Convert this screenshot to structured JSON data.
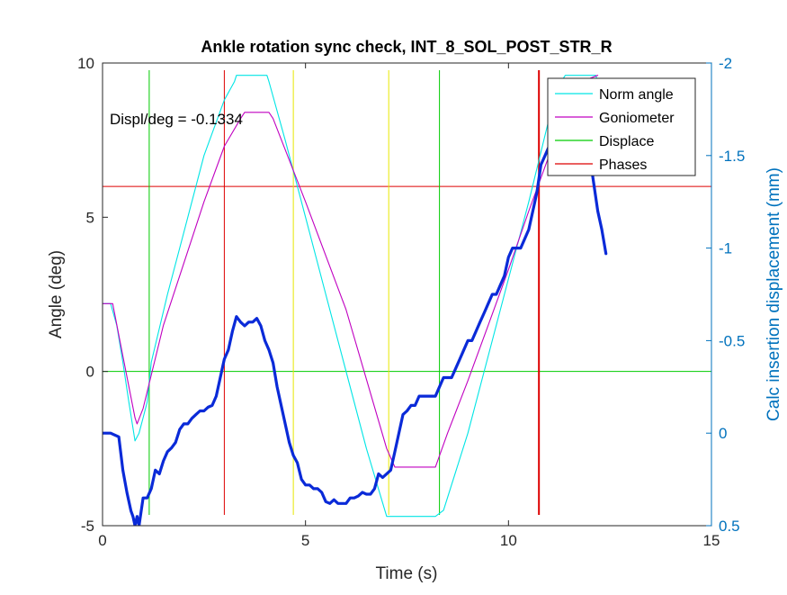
{
  "chart_data": {
    "type": "line",
    "title": "Ankle rotation sync check, INT_8_SOL_POST_STR_R",
    "xlabel": "Time (s)",
    "ylabel": "Angle (deg)",
    "y2label": "Calc insertion displacement (mm)",
    "xlim": [
      0,
      15
    ],
    "ylim": [
      -5,
      10
    ],
    "y2lim": [
      0.5,
      -2
    ],
    "y2_reversed": true,
    "xticks": [
      "0",
      "5",
      "10",
      "15"
    ],
    "xtick_values": [
      0,
      5,
      10,
      15
    ],
    "yticks": [
      "-5",
      "0",
      "5",
      "10"
    ],
    "ytick_values": [
      -5,
      0,
      5,
      10
    ],
    "y2ticks": [
      "0.5",
      "0",
      "-0.5",
      "-1",
      "-1.5",
      "-2"
    ],
    "y2tick_values": [
      0.5,
      0,
      -0.5,
      -1,
      -1.5,
      -2
    ],
    "annotation": "Displ/deg = -0.1334",
    "legend_position": "top-right",
    "legend": [
      {
        "label": "Norm angle",
        "color": "#00e5e5"
      },
      {
        "label": "Goniometer",
        "color": "#c000c0"
      },
      {
        "label": "Displace",
        "color": "#00cc00"
      },
      {
        "label": "Phases",
        "color": "#dd0000"
      }
    ],
    "series": [
      {
        "name": "Norm angle",
        "axis": "left",
        "color": "#00e5e5",
        "x": [
          0,
          0.2,
          0.35,
          0.5,
          0.65,
          0.8,
          0.9,
          1.0,
          1.1,
          1.2,
          1.6,
          2.0,
          2.5,
          3.0,
          3.25,
          3.3,
          4.05,
          4.1,
          4.5,
          5.0,
          5.5,
          6.0,
          6.5,
          7.0,
          7.2,
          8.2,
          8.4,
          9.0,
          9.5,
          10.0,
          10.5,
          11.0,
          11.35,
          11.4,
          12.15,
          12.2
        ],
        "y": [
          2.2,
          2.2,
          1.5,
          0.3,
          -1.0,
          -2.25,
          -2.0,
          -1.5,
          -1.0,
          0.3,
          2.5,
          4.5,
          7.0,
          8.8,
          9.4,
          9.6,
          9.6,
          9.4,
          7.5,
          5.0,
          2.5,
          0.0,
          -2.5,
          -4.7,
          -4.7,
          -4.7,
          -4.5,
          -2.0,
          0.5,
          3.0,
          5.5,
          8.2,
          9.5,
          9.6,
          9.6,
          9.4
        ]
      },
      {
        "name": "Goniometer",
        "axis": "left",
        "color": "#c000c0",
        "x": [
          0,
          0.25,
          0.5,
          0.8,
          0.85,
          1.0,
          1.5,
          2.0,
          2.5,
          3.0,
          3.4,
          3.5,
          4.1,
          4.2,
          5.0,
          6.0,
          7.0,
          7.2,
          8.2,
          8.5,
          9.0,
          9.5,
          10.0,
          10.5,
          11.0,
          11.5,
          12.0,
          12.2
        ],
        "y": [
          2.2,
          2.2,
          0.5,
          -1.5,
          -1.7,
          -1.2,
          1.5,
          3.5,
          5.5,
          7.3,
          8.2,
          8.4,
          8.4,
          8.2,
          5.5,
          2.0,
          -2.5,
          -3.1,
          -3.1,
          -2.0,
          -0.3,
          1.5,
          3.3,
          5.2,
          7.0,
          8.7,
          9.5,
          9.6
        ]
      },
      {
        "name": "Displace",
        "axis": "right",
        "color": "#0a2ad8",
        "x": [
          0,
          0.2,
          0.4,
          0.5,
          0.6,
          0.7,
          0.75,
          0.8,
          0.85,
          0.9,
          1.0,
          1.1,
          1.2,
          1.3,
          1.4,
          1.5,
          1.6,
          1.7,
          1.8,
          1.9,
          2.0,
          2.1,
          2.2,
          2.3,
          2.4,
          2.5,
          2.6,
          2.7,
          2.8,
          2.9,
          3.0,
          3.1,
          3.2,
          3.3,
          3.4,
          3.5,
          3.6,
          3.7,
          3.8,
          3.9,
          4.0,
          4.1,
          4.2,
          4.3,
          4.4,
          4.5,
          4.6,
          4.7,
          4.8,
          4.9,
          5.0,
          5.1,
          5.2,
          5.3,
          5.4,
          5.5,
          5.6,
          5.7,
          5.8,
          5.9,
          6.0,
          6.1,
          6.2,
          6.3,
          6.4,
          6.5,
          6.6,
          6.7,
          6.8,
          6.9,
          7.0,
          7.1,
          7.2,
          7.3,
          7.4,
          7.5,
          7.6,
          7.7,
          7.8,
          7.9,
          8.0,
          8.1,
          8.2,
          8.3,
          8.4,
          8.5,
          8.6,
          8.7,
          8.8,
          8.9,
          9.0,
          9.1,
          9.2,
          9.3,
          9.4,
          9.5,
          9.6,
          9.7,
          9.8,
          9.9,
          10.0,
          10.1,
          10.2,
          10.3,
          10.4,
          10.5,
          10.6,
          10.7,
          10.8,
          10.9,
          11.0,
          11.1,
          11.2,
          11.3,
          11.4,
          11.5,
          11.6,
          11.7,
          11.8,
          11.9,
          12.0,
          12.1,
          12.2,
          12.3,
          12.4
        ],
        "y": [
          0.0,
          0.0,
          0.02,
          0.2,
          0.32,
          0.42,
          0.45,
          0.5,
          0.45,
          0.5,
          0.35,
          0.35,
          0.3,
          0.2,
          0.22,
          0.15,
          0.1,
          0.08,
          0.05,
          -0.02,
          -0.05,
          -0.05,
          -0.08,
          -0.1,
          -0.12,
          -0.12,
          -0.14,
          -0.15,
          -0.2,
          -0.3,
          -0.4,
          -0.45,
          -0.55,
          -0.63,
          -0.6,
          -0.58,
          -0.6,
          -0.6,
          -0.62,
          -0.58,
          -0.5,
          -0.45,
          -0.38,
          -0.25,
          -0.15,
          -0.05,
          0.05,
          0.12,
          0.16,
          0.25,
          0.28,
          0.28,
          0.3,
          0.3,
          0.32,
          0.37,
          0.38,
          0.36,
          0.38,
          0.38,
          0.38,
          0.35,
          0.35,
          0.34,
          0.32,
          0.33,
          0.33,
          0.3,
          0.22,
          0.24,
          0.22,
          0.2,
          0.1,
          0.0,
          -0.1,
          -0.12,
          -0.15,
          -0.15,
          -0.2,
          -0.2,
          -0.2,
          -0.2,
          -0.2,
          -0.25,
          -0.3,
          -0.3,
          -0.3,
          -0.35,
          -0.4,
          -0.45,
          -0.5,
          -0.5,
          -0.55,
          -0.6,
          -0.65,
          -0.7,
          -0.75,
          -0.75,
          -0.8,
          -0.85,
          -0.95,
          -1.0,
          -1.0,
          -1.0,
          -1.05,
          -1.1,
          -1.2,
          -1.3,
          -1.45,
          -1.5,
          -1.55,
          -1.6,
          -1.65,
          -1.7,
          -1.75,
          -1.75,
          -1.8,
          -1.8,
          -1.7,
          -1.6,
          -1.5,
          -1.35,
          -1.2,
          -1.1,
          -0.97
        ]
      }
    ],
    "reference_lines": [
      {
        "name": "Displace",
        "orientation": "horizontal",
        "axis": "left",
        "value": 0,
        "color": "#00cc00"
      },
      {
        "name": "Phases",
        "orientation": "horizontal",
        "axis": "left",
        "value": 6,
        "color": "#dd0000"
      },
      {
        "orientation": "vertical",
        "x": 1.15,
        "color": "#00cc00"
      },
      {
        "orientation": "vertical",
        "x": 3.0,
        "color": "#dd0000"
      },
      {
        "orientation": "vertical",
        "x": 4.7,
        "color": "#e8e800"
      },
      {
        "orientation": "vertical",
        "x": 7.05,
        "color": "#e8e800"
      },
      {
        "orientation": "vertical",
        "x": 8.3,
        "color": "#00cc00"
      },
      {
        "orientation": "vertical",
        "x": 10.75,
        "color": "#dd0000",
        "bold": true
      }
    ]
  }
}
